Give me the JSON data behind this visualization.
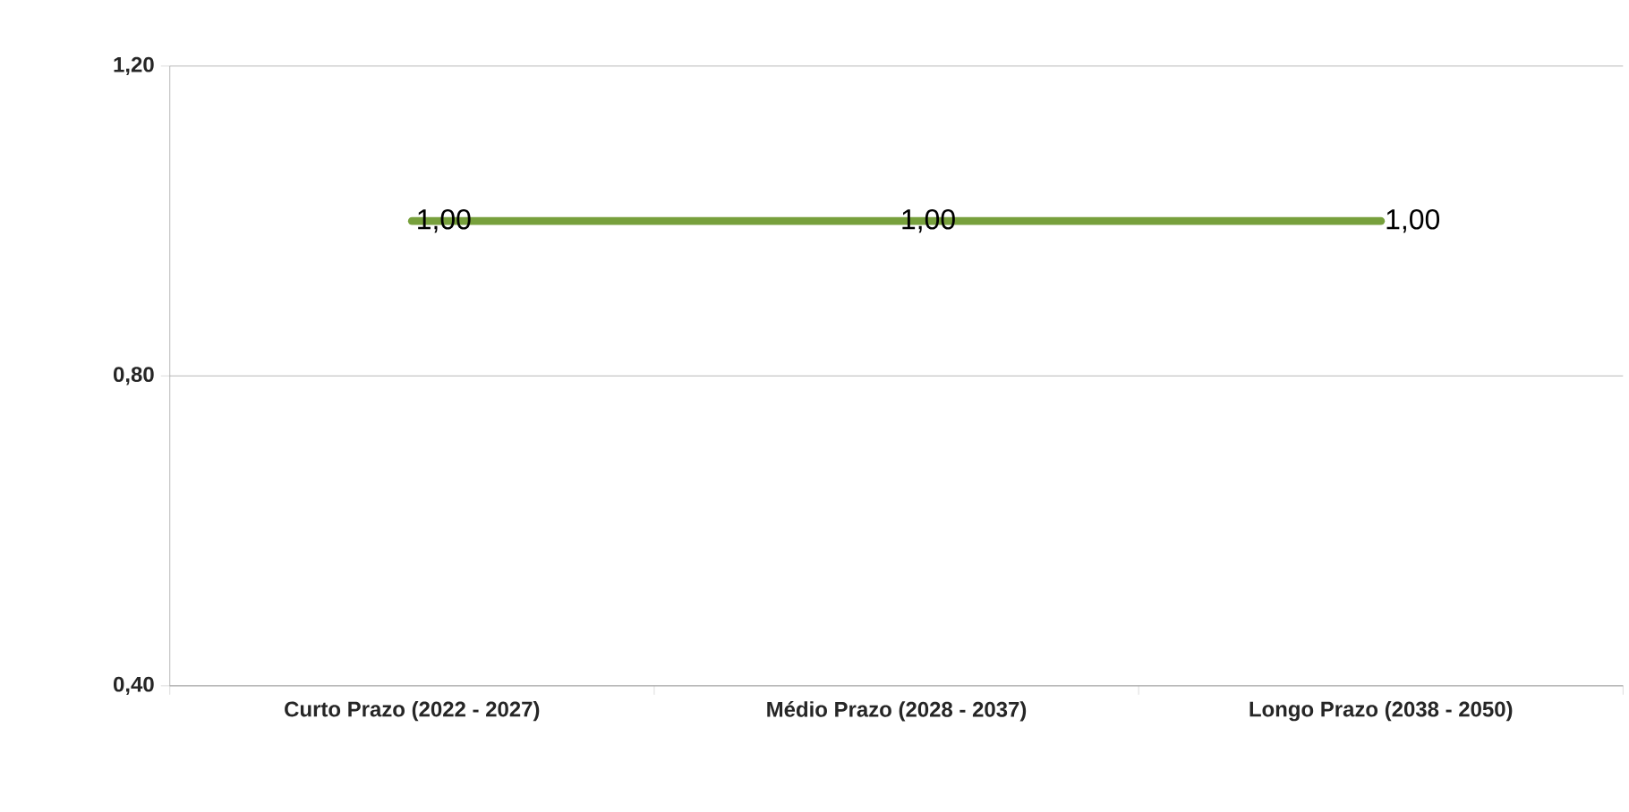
{
  "chart_data": {
    "type": "line",
    "categories": [
      "Curto Prazo (2022 - 2027)",
      "Médio Prazo (2028 - 2037)",
      "Longo Prazo (2038 - 2050)"
    ],
    "series": [
      {
        "color": "#77a03c",
        "values": [
          1.0,
          1.0,
          1.0
        ],
        "value_labels": [
          "1,00",
          "1,00",
          "1,00"
        ]
      }
    ],
    "ylim": [
      0.4,
      1.2
    ],
    "yticks": [
      {
        "value": 0.4,
        "label": "0,40"
      },
      {
        "value": 0.8,
        "label": "0,80"
      },
      {
        "value": 1.2,
        "label": "1,20"
      }
    ],
    "grid": "y",
    "line_style": "solid"
  }
}
